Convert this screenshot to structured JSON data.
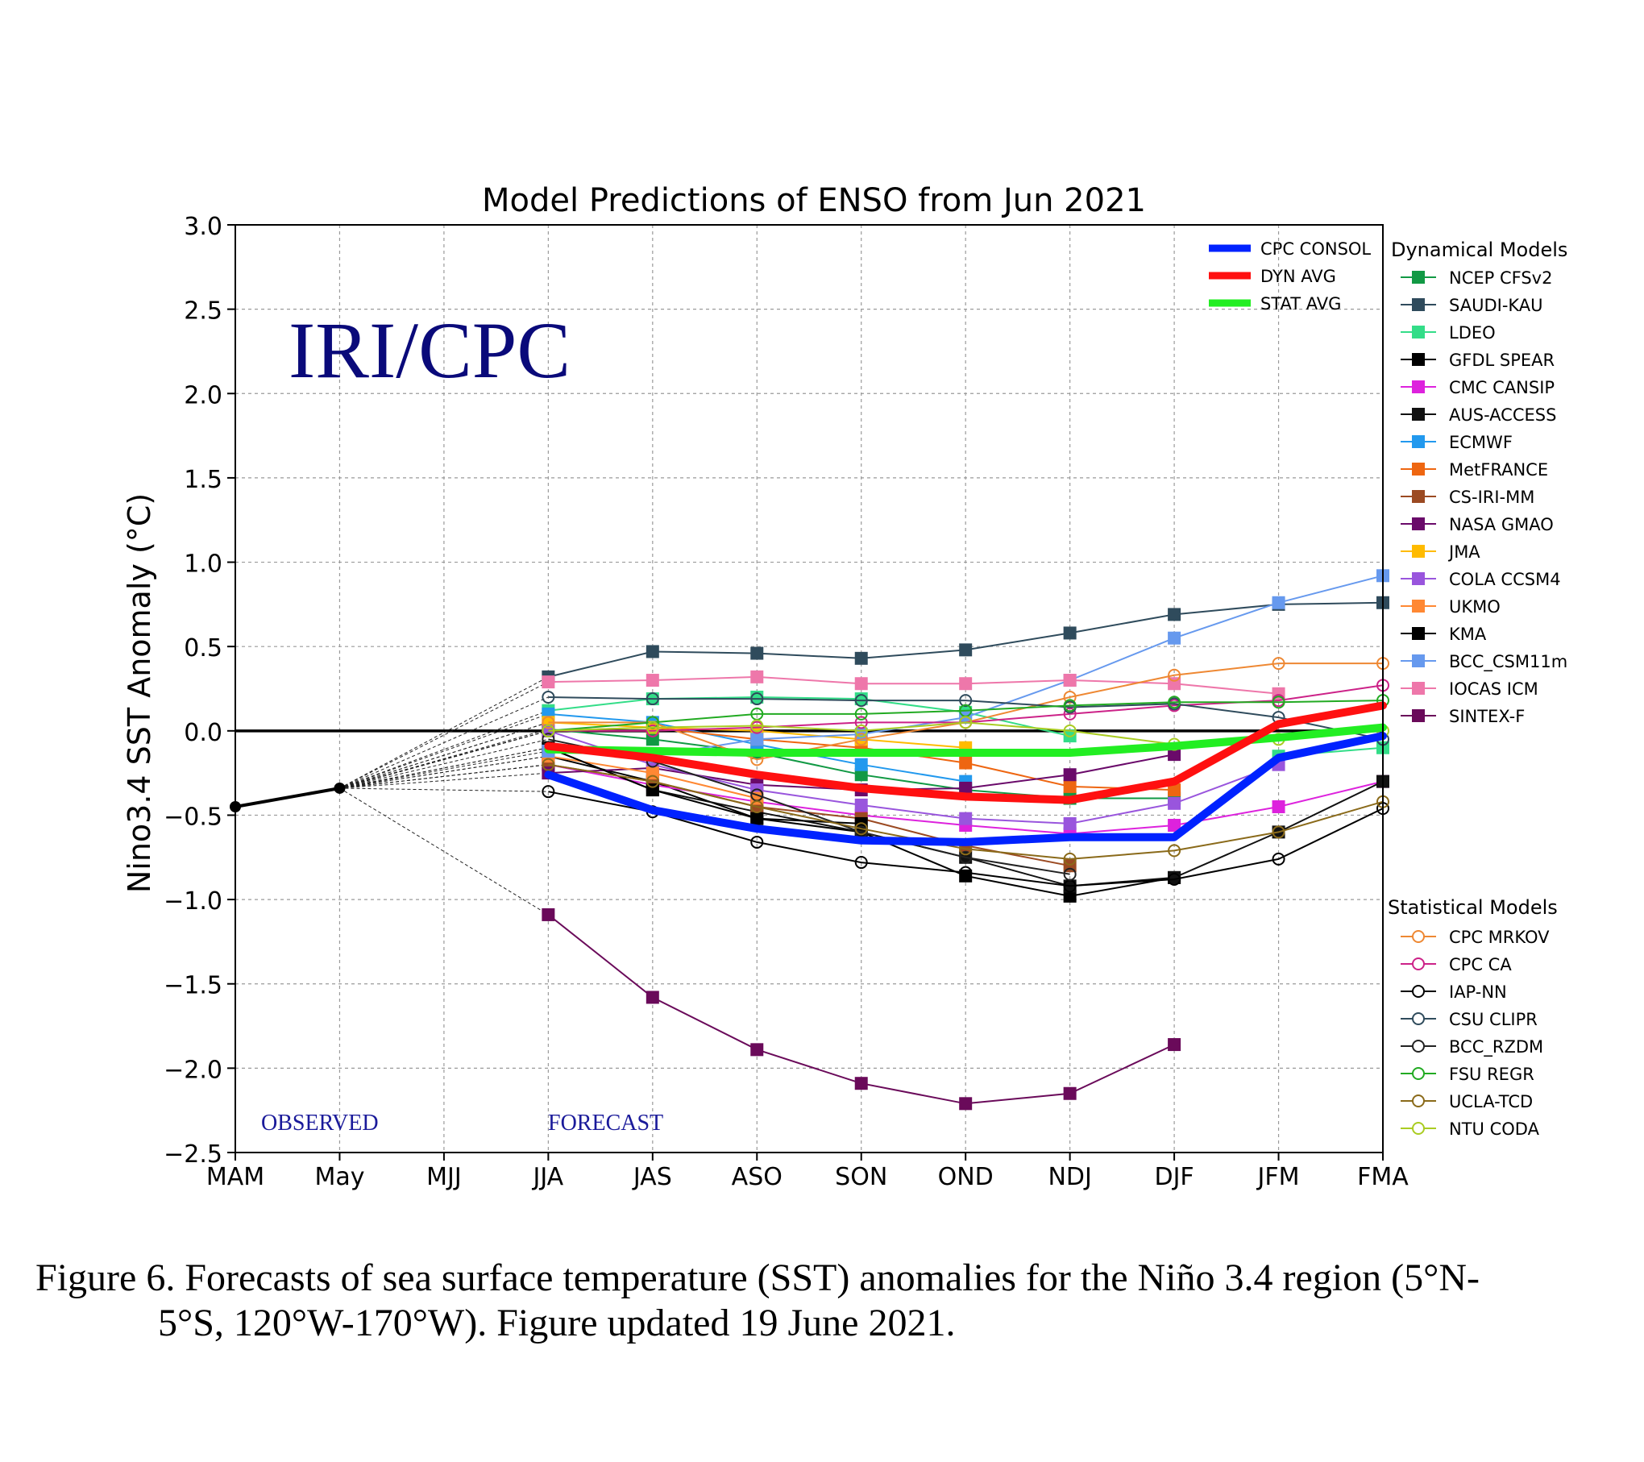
{
  "chart_data": {
    "type": "line",
    "title": "Model Predictions of ENSO from Jun 2021",
    "watermark": "IRI/CPC",
    "xlabel": "",
    "ylabel": "Nino3.4 SST Anomaly (°C)",
    "ylim": [
      -2.5,
      3.0
    ],
    "yticks": [
      "3.0",
      "2.5",
      "2.0",
      "1.5",
      "1.0",
      "0.5",
      "0.0",
      "−0.5",
      "−1.0",
      "−1.5",
      "−2.0",
      "−2.5"
    ],
    "categories": [
      "MAM",
      "May",
      "MJJ",
      "JJA",
      "JAS",
      "ASO",
      "SON",
      "OND",
      "NDJ",
      "DJF",
      "JFM",
      "FMA"
    ],
    "grid": true,
    "region_labels": {
      "observed": "OBSERVED",
      "forecast": "FORECAST"
    },
    "observed": {
      "x": [
        "MAM",
        "May"
      ],
      "values": [
        -0.45,
        -0.34
      ],
      "color": "#000000"
    },
    "averages_legend_placement": "top-right inside plot",
    "averages": [
      {
        "name": "CPC CONSOL",
        "color": "#0022ff",
        "values": [
          null,
          null,
          null,
          -0.26,
          -0.47,
          -0.58,
          -0.65,
          -0.66,
          -0.63,
          -0.63,
          -0.16,
          -0.03
        ]
      },
      {
        "name": "DYN AVG",
        "color": "#ff1010",
        "values": [
          null,
          null,
          null,
          -0.09,
          -0.16,
          -0.26,
          -0.34,
          -0.39,
          -0.41,
          -0.3,
          0.04,
          0.15
        ]
      },
      {
        "name": "STAT AVG",
        "color": "#22ee22",
        "values": [
          null,
          null,
          null,
          -0.11,
          -0.12,
          -0.13,
          -0.13,
          -0.13,
          -0.13,
          -0.09,
          -0.04,
          0.02
        ]
      }
    ],
    "dynamical_title": "Dynamical Models",
    "dynamical_models": [
      {
        "name": "NCEP CFSv2",
        "color": "#119944",
        "values": [
          null,
          null,
          null,
          0.01,
          -0.05,
          -0.13,
          -0.26,
          -0.35,
          -0.4,
          -0.4,
          null,
          null
        ]
      },
      {
        "name": "SAUDI-KAU",
        "color": "#2f4b5c",
        "values": [
          null,
          null,
          null,
          0.32,
          0.47,
          0.46,
          0.43,
          0.48,
          0.58,
          0.69,
          0.75,
          0.76
        ]
      },
      {
        "name": "LDEO",
        "color": "#33dd88",
        "values": [
          null,
          null,
          null,
          0.12,
          0.19,
          0.2,
          0.19,
          0.11,
          -0.03,
          null,
          -0.15,
          -0.1
        ]
      },
      {
        "name": "GFDL SPEAR",
        "color": "#000000",
        "values": [
          null,
          null,
          null,
          -0.15,
          -0.3,
          -0.52,
          -0.6,
          -0.86,
          -0.98,
          -0.87,
          null,
          null
        ]
      },
      {
        "name": "CMC CANSIP",
        "color": "#dd22dd",
        "values": [
          null,
          null,
          null,
          -0.2,
          -0.32,
          -0.42,
          -0.5,
          -0.56,
          -0.61,
          -0.56,
          -0.45,
          -0.3
        ]
      },
      {
        "name": "AUS-ACCESS",
        "color": "#111111",
        "values": [
          null,
          null,
          null,
          -0.1,
          -0.35,
          -0.48,
          -0.6,
          -0.75,
          -0.92,
          -0.87,
          -0.6,
          -0.3
        ]
      },
      {
        "name": "ECMWF",
        "color": "#2299ee",
        "values": [
          null,
          null,
          null,
          0.1,
          0.05,
          -0.08,
          -0.2,
          -0.3,
          null,
          null,
          null,
          null
        ]
      },
      {
        "name": "MetFRANCE",
        "color": "#ee6611",
        "values": [
          null,
          null,
          null,
          0.0,
          0.02,
          -0.05,
          -0.1,
          -0.19,
          -0.33,
          -0.35,
          null,
          null
        ]
      },
      {
        "name": "CS-IRI-MM",
        "color": "#9b4a22",
        "values": [
          null,
          null,
          null,
          -0.2,
          -0.3,
          -0.45,
          -0.52,
          -0.68,
          -0.8,
          null,
          null,
          null
        ]
      },
      {
        "name": "NASA GMAO",
        "color": "#6a0a6a",
        "values": [
          null,
          null,
          null,
          -0.25,
          -0.22,
          -0.32,
          -0.35,
          -0.34,
          -0.26,
          -0.14,
          null,
          null
        ]
      },
      {
        "name": "JMA",
        "color": "#ffbb00",
        "values": [
          null,
          null,
          null,
          0.05,
          0.02,
          0.0,
          -0.05,
          -0.1,
          null,
          null,
          null,
          null
        ]
      },
      {
        "name": "COLA CCSM4",
        "color": "#9955dd",
        "values": [
          null,
          null,
          null,
          0.0,
          -0.2,
          -0.35,
          -0.44,
          -0.52,
          -0.55,
          -0.43,
          -0.2,
          null
        ]
      },
      {
        "name": "UKMO",
        "color": "#ff8833",
        "values": [
          null,
          null,
          null,
          -0.15,
          -0.25,
          -0.4,
          null,
          null,
          null,
          null,
          null,
          null
        ]
      },
      {
        "name": "KMA",
        "color": "#000000",
        "values": [
          null,
          null,
          null,
          -0.1,
          -0.35,
          -0.52,
          -0.55,
          null,
          null,
          null,
          null,
          null
        ]
      },
      {
        "name": "BCC_CSM11m",
        "color": "#6699ee",
        "values": [
          null,
          null,
          null,
          -0.12,
          -0.15,
          -0.05,
          -0.02,
          0.08,
          0.3,
          0.55,
          0.76,
          0.92
        ]
      },
      {
        "name": "IOCAS ICM",
        "color": "#ee77aa",
        "values": [
          null,
          null,
          null,
          0.29,
          0.3,
          0.32,
          0.28,
          0.28,
          0.3,
          0.28,
          0.22,
          null
        ]
      },
      {
        "name": "SINTEX-F",
        "color": "#6a0a5a",
        "values": [
          null,
          null,
          null,
          -1.09,
          -1.58,
          -1.89,
          -2.09,
          -2.21,
          -2.15,
          -1.86,
          null,
          null
        ]
      }
    ],
    "statistical_title": "Statistical Models",
    "statistical_models": [
      {
        "name": "CPC MRKOV",
        "color": "#ee8833",
        "values": [
          null,
          null,
          null,
          0.05,
          0.05,
          -0.17,
          -0.05,
          0.05,
          0.2,
          0.33,
          0.4,
          0.4
        ]
      },
      {
        "name": "CPC CA",
        "color": "#cc2288",
        "values": [
          null,
          null,
          null,
          0.0,
          0.0,
          0.02,
          0.05,
          0.05,
          0.1,
          0.15,
          0.18,
          0.27
        ]
      },
      {
        "name": "IAP-NN",
        "color": "#000000",
        "values": [
          null,
          null,
          null,
          -0.36,
          -0.48,
          -0.66,
          -0.78,
          -0.84,
          -0.92,
          -0.88,
          -0.76,
          -0.46
        ]
      },
      {
        "name": "CSU CLIPR",
        "color": "#2f4b5c",
        "values": [
          null,
          null,
          null,
          0.2,
          0.19,
          0.19,
          0.18,
          0.18,
          0.14,
          0.16,
          0.08,
          -0.05
        ]
      },
      {
        "name": "BCC_RZDM",
        "color": "#222222",
        "values": [
          null,
          null,
          null,
          -0.05,
          -0.18,
          -0.38,
          -0.6,
          -0.75,
          -0.85,
          null,
          null,
          null
        ]
      },
      {
        "name": "FSU REGR",
        "color": "#22aa22",
        "values": [
          null,
          null,
          null,
          0.0,
          0.05,
          0.1,
          0.1,
          0.12,
          0.15,
          0.17,
          0.17,
          0.18
        ]
      },
      {
        "name": "UCLA-TCD",
        "color": "#8a6a1a",
        "values": [
          null,
          null,
          null,
          -0.2,
          -0.3,
          -0.45,
          -0.58,
          -0.7,
          -0.76,
          -0.71,
          -0.6,
          -0.42
        ]
      },
      {
        "name": "NTU CODA",
        "color": "#aacc22",
        "values": [
          null,
          null,
          null,
          0.0,
          0.02,
          0.03,
          0.0,
          0.05,
          0.0,
          -0.08,
          -0.05,
          0.0
        ]
      }
    ]
  },
  "caption": {
    "line1": "Figure 6. Forecasts of sea surface temperature (SST) anomalies for the Niño 3.4 region (5°N-",
    "line2": "5°S, 120°W-170°W). Figure updated 19 June 2021."
  }
}
